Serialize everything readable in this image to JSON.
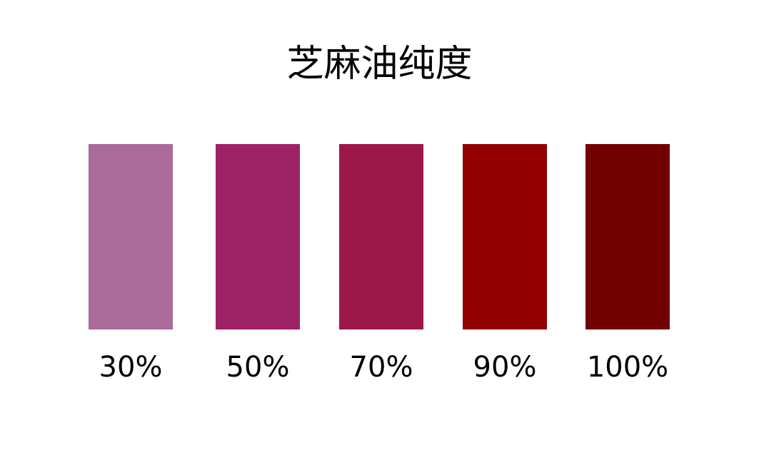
{
  "title": "芝麻油纯度",
  "swatches": [
    {
      "label": "30%",
      "color": "#AA6A9A"
    },
    {
      "label": "50%",
      "color": "#9E2266"
    },
    {
      "label": "70%",
      "color": "#9C1848"
    },
    {
      "label": "90%",
      "color": "#920000"
    },
    {
      "label": "100%",
      "color": "#720000"
    }
  ]
}
